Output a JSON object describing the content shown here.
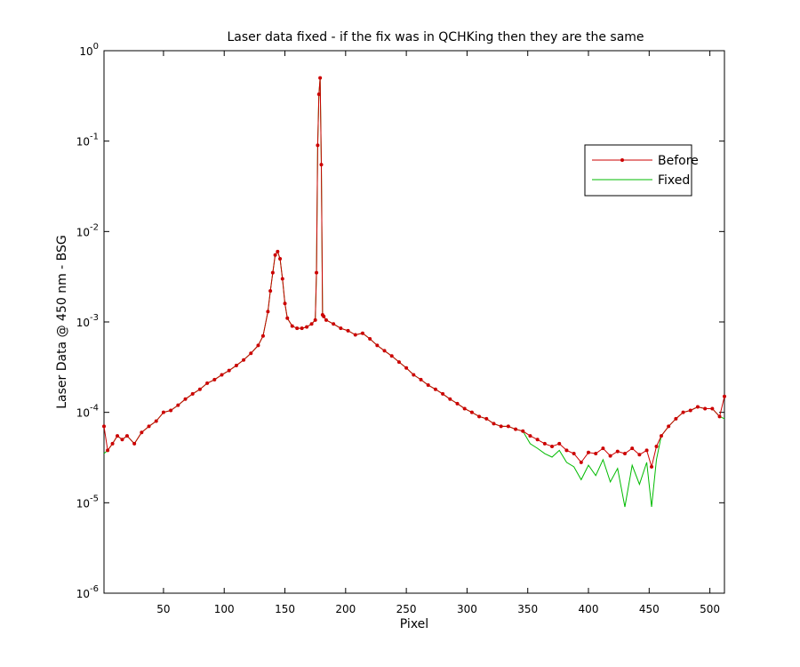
{
  "chart_data": {
    "type": "line",
    "title": "Laser data fixed - if the fix was in QCHKing then they are the same",
    "x_label": "Pixel",
    "y_label": "Laser Data @ 450 nm - BSG",
    "log_y": true,
    "legend_position": "upper right",
    "x": [
      1,
      4,
      8,
      12,
      16,
      20,
      26,
      32,
      38,
      44,
      50,
      56,
      62,
      68,
      74,
      80,
      86,
      92,
      98,
      104,
      110,
      116,
      122,
      128,
      132,
      136,
      138,
      140,
      142,
      144,
      146,
      148,
      150,
      152,
      156,
      160,
      164,
      168,
      172,
      175,
      176,
      177,
      178,
      179,
      180,
      181,
      182,
      184,
      190,
      196,
      202,
      208,
      214,
      220,
      226,
      232,
      238,
      244,
      250,
      256,
      262,
      268,
      274,
      280,
      286,
      292,
      298,
      304,
      310,
      316,
      322,
      328,
      334,
      340,
      346,
      352,
      358,
      364,
      370,
      376,
      382,
      388,
      394,
      400,
      406,
      412,
      418,
      424,
      430,
      436,
      442,
      448,
      452,
      456,
      460,
      466,
      472,
      478,
      484,
      490,
      496,
      502,
      508,
      512
    ],
    "series": [
      {
        "name": "Before",
        "color": "#cc0000",
        "marker": true,
        "values": [
          7e-05,
          3.8e-05,
          4.5e-05,
          5.5e-05,
          5e-05,
          5.5e-05,
          4.5e-05,
          6e-05,
          7e-05,
          8e-05,
          0.0001,
          0.000105,
          0.00012,
          0.00014,
          0.00016,
          0.00018,
          0.00021,
          0.00023,
          0.00026,
          0.00029,
          0.00033,
          0.00038,
          0.00045,
          0.00055,
          0.0007,
          0.0013,
          0.0022,
          0.0035,
          0.0055,
          0.006,
          0.005,
          0.003,
          0.0016,
          0.0011,
          0.0009,
          0.00085,
          0.00085,
          0.00088,
          0.00095,
          0.00105,
          0.0035,
          0.09,
          0.33,
          0.5,
          0.055,
          0.0012,
          0.00115,
          0.00105,
          0.00095,
          0.00085,
          0.0008,
          0.00072,
          0.00075,
          0.00065,
          0.00055,
          0.00048,
          0.00042,
          0.00036,
          0.00031,
          0.00026,
          0.00023,
          0.0002,
          0.00018,
          0.00016,
          0.00014,
          0.000125,
          0.00011,
          0.0001,
          9e-05,
          8.5e-05,
          7.5e-05,
          7e-05,
          7e-05,
          6.5e-05,
          6.2e-05,
          5.5e-05,
          5e-05,
          4.5e-05,
          4.2e-05,
          4.5e-05,
          3.8e-05,
          3.5e-05,
          2.8e-05,
          3.6e-05,
          3.5e-05,
          4e-05,
          3.3e-05,
          3.7e-05,
          3.5e-05,
          4e-05,
          3.4e-05,
          3.8e-05,
          2.5e-05,
          4.2e-05,
          5.5e-05,
          7e-05,
          8.5e-05,
          0.0001,
          0.000105,
          0.000115,
          0.00011,
          0.00011,
          9e-05,
          0.00015
        ]
      },
      {
        "name": "Fixed",
        "color": "#00bb00",
        "marker": false,
        "values": [
          3.5e-05,
          3.8e-05,
          4.5e-05,
          5.5e-05,
          5e-05,
          5.5e-05,
          4.5e-05,
          6e-05,
          7e-05,
          8e-05,
          0.0001,
          0.000105,
          0.00012,
          0.00014,
          0.00016,
          0.00018,
          0.00021,
          0.00023,
          0.00026,
          0.00029,
          0.00033,
          0.00038,
          0.00045,
          0.00055,
          0.0007,
          0.0013,
          0.0022,
          0.0035,
          0.0055,
          0.006,
          0.005,
          0.003,
          0.0016,
          0.0011,
          0.0009,
          0.00085,
          0.00085,
          0.00088,
          0.00095,
          0.00105,
          0.0035,
          0.09,
          0.33,
          0.5,
          0.055,
          0.0012,
          0.00115,
          0.00105,
          0.00095,
          0.00085,
          0.0008,
          0.00072,
          0.00075,
          0.00065,
          0.00055,
          0.00048,
          0.00042,
          0.00036,
          0.00031,
          0.00026,
          0.00023,
          0.0002,
          0.00018,
          0.00016,
          0.00014,
          0.000125,
          0.00011,
          0.0001,
          9e-05,
          8.5e-05,
          7.5e-05,
          7e-05,
          7e-05,
          6.5e-05,
          6.2e-05,
          4.5e-05,
          4e-05,
          3.5e-05,
          3.2e-05,
          3.8e-05,
          2.8e-05,
          2.5e-05,
          1.8e-05,
          2.6e-05,
          2e-05,
          3e-05,
          1.7e-05,
          2.4e-05,
          9e-06,
          2.6e-05,
          1.6e-05,
          2.8e-05,
          9e-06,
          3e-05,
          5.5e-05,
          7e-05,
          8.5e-05,
          0.0001,
          0.000105,
          0.000115,
          0.00011,
          0.00011,
          9e-05,
          8.5e-05
        ]
      }
    ],
    "xlim": [
      1,
      512
    ],
    "xticks": [
      50,
      100,
      150,
      200,
      250,
      300,
      350,
      400,
      450,
      500
    ],
    "ylim": [
      1e-06,
      1
    ],
    "yticks": [
      {
        "value": 1e-06,
        "label": "10^-6"
      },
      {
        "value": 1e-05,
        "label": "10^-5"
      },
      {
        "value": 0.0001,
        "label": "10^-4"
      },
      {
        "value": 0.001,
        "label": "10^-3"
      },
      {
        "value": 0.01,
        "label": "10^-2"
      },
      {
        "value": 0.1,
        "label": "10^-1"
      },
      {
        "value": 1,
        "label": "10^0"
      }
    ]
  }
}
